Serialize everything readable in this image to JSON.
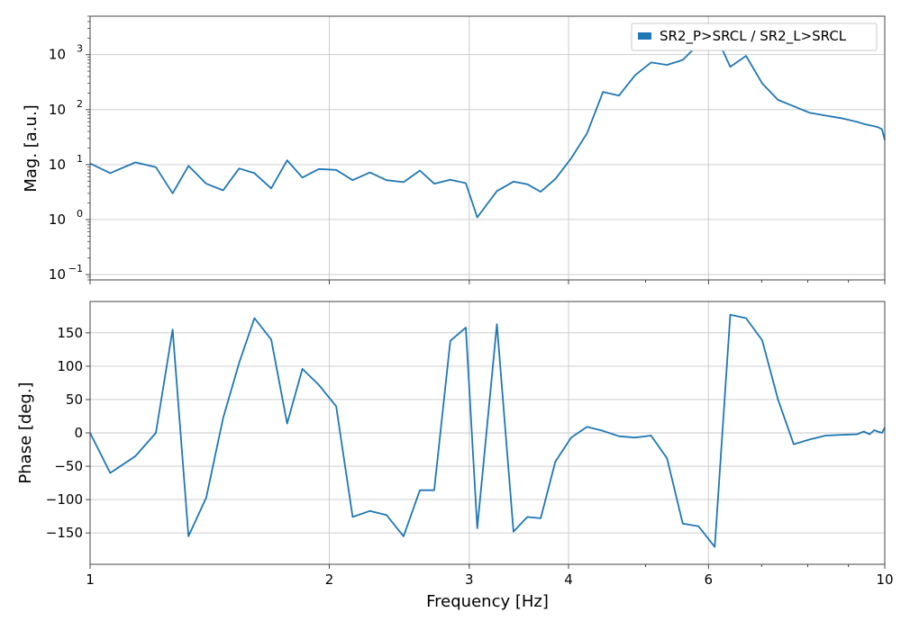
{
  "chart_data": [
    {
      "type": "line",
      "x_scale": "log",
      "y_scale": "log",
      "xlim": [
        1,
        10
      ],
      "ylim": [
        0.08,
        5000
      ],
      "ylabel": "Mag. [a.u.]",
      "grid": true,
      "legend_position": "top-right",
      "y_ticks": [
        {
          "value": 0.1,
          "base": "10",
          "exp": "−1"
        },
        {
          "value": 1,
          "base": "10",
          "exp": "0"
        },
        {
          "value": 10,
          "base": "10",
          "exp": "1"
        },
        {
          "value": 100,
          "base": "10",
          "exp": "2"
        },
        {
          "value": 1000,
          "base": "10",
          "exp": "3"
        }
      ],
      "series": [
        {
          "name": "SR2_P>SRCL / SR2_L>SRCL",
          "color": "#1f77b4",
          "x": [
            1.0,
            1.06,
            1.14,
            1.21,
            1.27,
            1.33,
            1.4,
            1.47,
            1.54,
            1.61,
            1.69,
            1.77,
            1.85,
            1.94,
            2.04,
            2.14,
            2.25,
            2.36,
            2.48,
            2.6,
            2.71,
            2.84,
            2.97,
            3.07,
            3.25,
            3.41,
            3.55,
            3.69,
            3.85,
            4.03,
            4.22,
            4.42,
            4.63,
            4.85,
            5.08,
            5.32,
            5.57,
            5.83,
            6.11,
            6.39,
            6.69,
            7.01,
            7.34,
            7.68,
            8.04,
            8.42,
            8.81,
            9.23,
            9.41,
            9.57,
            9.7,
            9.8,
            9.92,
            10.0
          ],
          "values": [
            10.5,
            7.0,
            11.0,
            9.0,
            3.0,
            9.5,
            4.5,
            3.4,
            8.5,
            7.0,
            3.7,
            12.0,
            5.8,
            8.3,
            8.0,
            5.2,
            7.2,
            5.2,
            4.8,
            7.8,
            4.5,
            5.3,
            4.6,
            1.1,
            3.3,
            4.9,
            4.4,
            3.2,
            5.5,
            13.0,
            37.0,
            210.0,
            180.0,
            420.0,
            720.0,
            650.0,
            800.0,
            1550.0,
            2450.0,
            600.0,
            950.0,
            300.0,
            150.0,
            115.0,
            88.0,
            78.0,
            70.0,
            60.0,
            55.0,
            52.0,
            50.0,
            48.0,
            44.0,
            28.0
          ],
          "note_values": []
        }
      ]
    },
    {
      "type": "line",
      "x_scale": "log",
      "xlim": [
        1,
        10
      ],
      "ylim": [
        -197,
        197
      ],
      "xlabel": "Frequency [Hz]",
      "ylabel": "Phase [deg.]",
      "grid": true,
      "x_ticks": [
        {
          "value": 1,
          "label": "1"
        },
        {
          "value": 2,
          "label": "2"
        },
        {
          "value": 3,
          "label": "3"
        },
        {
          "value": 4,
          "label": "4"
        },
        {
          "value": 6,
          "label": "6"
        },
        {
          "value": 10,
          "label": "10"
        }
      ],
      "y_ticks": [
        {
          "value": 150,
          "label": "150"
        },
        {
          "value": 100,
          "label": "100"
        },
        {
          "value": 50,
          "label": "50"
        },
        {
          "value": 0,
          "label": "0"
        },
        {
          "value": -50,
          "label": "−50"
        },
        {
          "value": -100,
          "label": "−100"
        },
        {
          "value": -150,
          "label": "−150"
        }
      ],
      "series": [
        {
          "color": "#1f77b4",
          "x": [
            1.0,
            1.06,
            1.14,
            1.21,
            1.27,
            1.33,
            1.4,
            1.47,
            1.54,
            1.61,
            1.69,
            1.77,
            1.85,
            1.94,
            2.04,
            2.14,
            2.25,
            2.36,
            2.48,
            2.6,
            2.71,
            2.84,
            2.97,
            3.07,
            3.25,
            3.41,
            3.55,
            3.69,
            3.85,
            4.03,
            4.22,
            4.42,
            4.63,
            4.85,
            5.08,
            5.32,
            5.57,
            5.83,
            6.11,
            6.39,
            6.69,
            7.01,
            7.34,
            7.68,
            8.04,
            8.42,
            8.81,
            9.23,
            9.41,
            9.57,
            9.7,
            9.8,
            9.92,
            10.0
          ],
          "values": [
            0,
            -60,
            -35,
            0,
            155,
            -155,
            -97,
            22,
            105,
            172,
            140,
            14,
            96,
            72,
            40,
            -126,
            -117,
            -123,
            -155,
            -86,
            -86,
            138,
            158,
            -143,
            163,
            -148,
            -126,
            -128,
            -43,
            -7,
            9,
            3,
            -5,
            -7,
            -4,
            -38,
            -136,
            -140,
            -171,
            177,
            172,
            139,
            50,
            -17,
            -10,
            -4,
            -3,
            -2,
            2,
            -2,
            4,
            2,
            0,
            8
          ],
          "note_values": []
        }
      ]
    }
  ]
}
